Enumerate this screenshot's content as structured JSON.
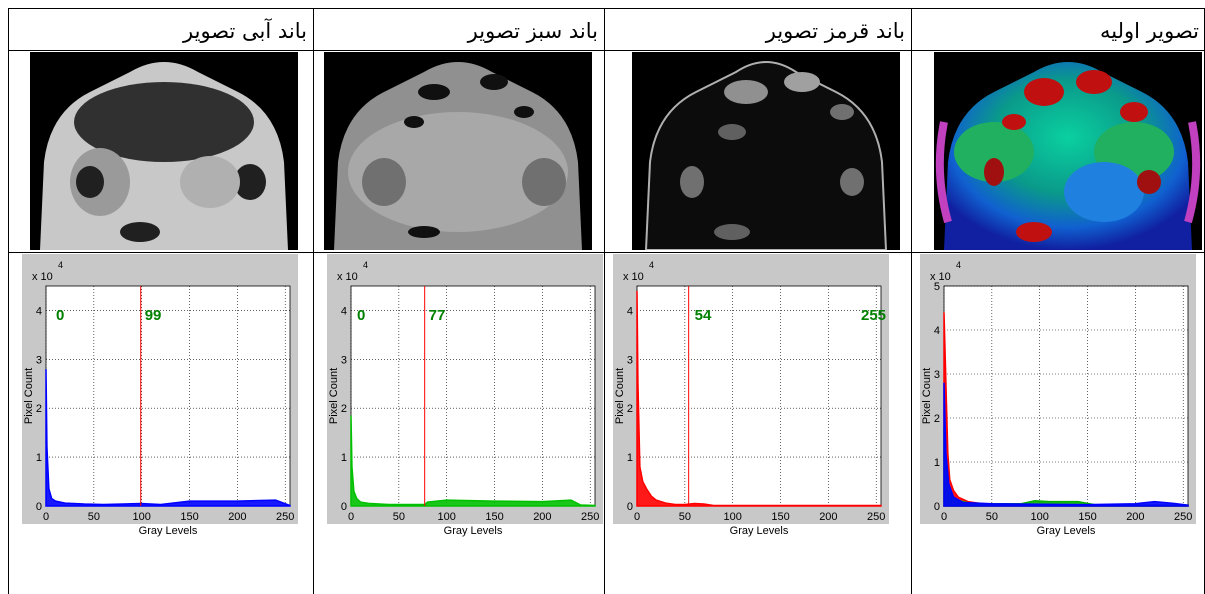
{
  "table": {
    "headers": [
      "تصویر اولیه",
      "باند قرمز تصویر",
      "باند سبز تصویر",
      "باند آبی تصویر"
    ]
  },
  "images": [
    {
      "name": "original-thermal-image",
      "colormap": "jet"
    },
    {
      "name": "red-band-image",
      "colormap": "dark-gray"
    },
    {
      "name": "green-band-image",
      "colormap": "mid-gray"
    },
    {
      "name": "blue-band-image",
      "colormap": "light-gray"
    }
  ],
  "chart_data": [
    {
      "type": "area",
      "panel": "original",
      "xlabel": "Gray Levels",
      "ylabel": "Pixel Count",
      "exponent_label": "x 10",
      "exponent_value": "4",
      "xlim": [
        0,
        255
      ],
      "ylim": [
        0,
        5
      ],
      "xticks": [
        "0",
        "50",
        "100",
        "150",
        "200",
        "250"
      ],
      "yticks": [
        "0",
        "1",
        "2",
        "3",
        "4",
        "5"
      ],
      "grid": true,
      "series": [
        {
          "color": "#ff0000",
          "x": [
            0,
            2,
            4,
            6,
            10,
            15,
            25,
            40,
            60,
            100,
            255
          ],
          "y": [
            4.4,
            2.8,
            1.2,
            0.6,
            0.35,
            0.2,
            0.1,
            0.05,
            0.03,
            0.02,
            0.02
          ]
        },
        {
          "color": "#00b000",
          "x": [
            0,
            3,
            10,
            30,
            80,
            95,
            110,
            140,
            160,
            255
          ],
          "y": [
            1.8,
            0.5,
            0.15,
            0.05,
            0.05,
            0.12,
            0.1,
            0.1,
            0.02,
            0.02
          ]
        },
        {
          "color": "#0000ff",
          "x": [
            0,
            2,
            5,
            10,
            20,
            50,
            150,
            200,
            220,
            240,
            255
          ],
          "y": [
            2.8,
            1.2,
            0.5,
            0.2,
            0.08,
            0.05,
            0.03,
            0.05,
            0.1,
            0.06,
            0.02
          ]
        }
      ],
      "annotations": []
    },
    {
      "type": "area",
      "panel": "red-band",
      "xlabel": "Gray Levels",
      "ylabel": "Pixel Count",
      "exponent_label": "x 10",
      "exponent_value": "4",
      "xlim": [
        0,
        255
      ],
      "ylim": [
        0,
        4.5
      ],
      "xticks": [
        "0",
        "50",
        "100",
        "150",
        "200",
        "250"
      ],
      "yticks": [
        "0",
        "1",
        "2",
        "3",
        "4"
      ],
      "grid": true,
      "series": [
        {
          "color": "#ff0000",
          "x": [
            0,
            1,
            3,
            6,
            10,
            15,
            20,
            30,
            40,
            50,
            60,
            70,
            80,
            255
          ],
          "y": [
            4.4,
            2.5,
            0.8,
            0.5,
            0.35,
            0.2,
            0.12,
            0.06,
            0.03,
            0.03,
            0.05,
            0.04,
            0.01,
            0.01
          ]
        }
      ],
      "threshold_line": 54,
      "annotations": [
        "54",
        "255"
      ]
    },
    {
      "type": "area",
      "panel": "green-band",
      "xlabel": "Gray Levels",
      "ylabel": "Pixel Count",
      "exponent_label": "x 10",
      "exponent_value": "4",
      "xlim": [
        0,
        255
      ],
      "ylim": [
        0,
        4.5
      ],
      "xticks": [
        "0",
        "50",
        "100",
        "150",
        "200",
        "250"
      ],
      "yticks": [
        "0",
        "1",
        "2",
        "3",
        "4"
      ],
      "grid": true,
      "series": [
        {
          "color": "#00c000",
          "x": [
            0,
            1,
            3,
            6,
            10,
            20,
            40,
            60,
            77,
            80,
            100,
            150,
            200,
            230,
            240,
            255
          ],
          "y": [
            1.85,
            0.8,
            0.3,
            0.15,
            0.08,
            0.05,
            0.03,
            0.03,
            0.03,
            0.08,
            0.12,
            0.1,
            0.09,
            0.12,
            0.02,
            0.01
          ]
        }
      ],
      "threshold_line": 77,
      "annotations": [
        "0",
        "77"
      ]
    },
    {
      "type": "area",
      "panel": "blue-band",
      "xlabel": "Gray Levels",
      "ylabel": "Pixel Count",
      "exponent_label": "x 10",
      "exponent_value": "4",
      "xlim": [
        0,
        255
      ],
      "ylim": [
        0,
        4.5
      ],
      "xticks": [
        "0",
        "50",
        "100",
        "150",
        "200",
        "250"
      ],
      "yticks": [
        "0",
        "1",
        "2",
        "3",
        "4"
      ],
      "grid": true,
      "series": [
        {
          "color": "#0000ff",
          "x": [
            0,
            1,
            3,
            6,
            10,
            20,
            40,
            60,
            99,
            120,
            150,
            200,
            240,
            255
          ],
          "y": [
            2.8,
            1.2,
            0.35,
            0.15,
            0.1,
            0.06,
            0.04,
            0.03,
            0.05,
            0.03,
            0.1,
            0.1,
            0.12,
            0.01
          ]
        }
      ],
      "threshold_line": 99,
      "annotations": [
        "0",
        "99"
      ]
    }
  ]
}
